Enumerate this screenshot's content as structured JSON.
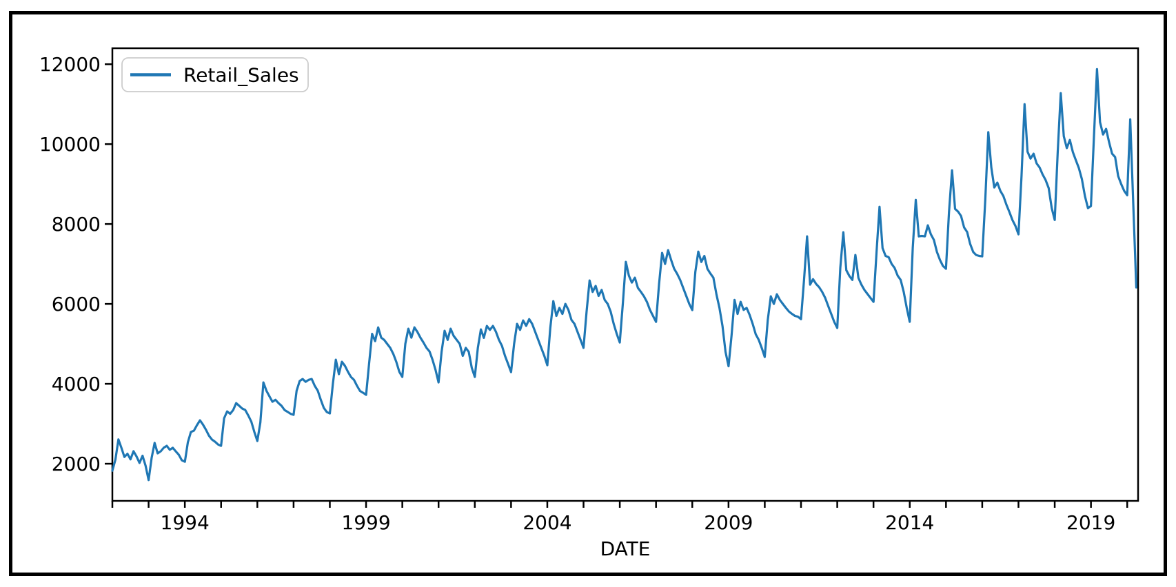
{
  "figure": {
    "background": "#ffffff",
    "border_color": "#000000"
  },
  "axes": {
    "xlabel": "DATE",
    "ylabel": "",
    "y_tick_labels": [
      "2000",
      "4000",
      "6000",
      "8000",
      "10000",
      "12000"
    ],
    "x_tick_labels": [
      "1994",
      "1999",
      "2004",
      "2009",
      "2014",
      "2019"
    ]
  },
  "legend": {
    "label": "Retail_Sales",
    "position": "upper-left"
  },
  "colors": {
    "line": "#1f77b4",
    "text": "#000000",
    "spine": "#000000",
    "legend_border": "#cccccc",
    "legend_fill": "#ffffff"
  },
  "chart_data": {
    "type": "line",
    "title": "",
    "xlabel": "DATE",
    "ylabel": "",
    "legend_entries": [
      "Retail_Sales"
    ],
    "legend_position": "upper-left",
    "grid": false,
    "xlim": [
      1992.0,
      2020.3
    ],
    "ylim": [
      1070,
      12400
    ],
    "y_ticks": [
      2000,
      4000,
      6000,
      8000,
      10000,
      12000
    ],
    "x_label_ticks": [
      1994,
      1999,
      2004,
      2009,
      2014,
      2019
    ],
    "x_all_ticks": [
      1992,
      1993,
      1994,
      1995,
      1996,
      1997,
      1998,
      1999,
      2000,
      2001,
      2002,
      2003,
      2004,
      2005,
      2006,
      2007,
      2008,
      2009,
      2010,
      2011,
      2012,
      2013,
      2014,
      2015,
      2016,
      2017,
      2018,
      2019,
      2020
    ],
    "series": [
      {
        "name": "Retail_Sales",
        "color": "#1f77b4",
        "frequency": "monthly",
        "start_year": 1992,
        "start_month": 1,
        "end_year": 2020,
        "end_month": 4,
        "values": [
          1826,
          2100,
          2609,
          2400,
          2170,
          2250,
          2110,
          2313,
          2180,
          2020,
          2200,
          1950,
          1590,
          2150,
          2522,
          2260,
          2310,
          2400,
          2448,
          2350,
          2400,
          2310,
          2224,
          2086,
          2050,
          2534,
          2793,
          2827,
          2966,
          3086,
          2980,
          2850,
          2700,
          2603,
          2550,
          2480,
          2448,
          3138,
          3310,
          3250,
          3345,
          3517,
          3450,
          3380,
          3345,
          3207,
          3052,
          2800,
          2569,
          3034,
          4034,
          3828,
          3690,
          3552,
          3600,
          3517,
          3450,
          3345,
          3300,
          3250,
          3224,
          3828,
          4069,
          4121,
          4050,
          4100,
          4121,
          3950,
          3828,
          3603,
          3400,
          3293,
          3259,
          4000,
          4603,
          4241,
          4551,
          4450,
          4300,
          4172,
          4100,
          3950,
          3820,
          3776,
          3724,
          4500,
          5250,
          5069,
          5413,
          5155,
          5100,
          5000,
          4900,
          4750,
          4550,
          4300,
          4172,
          5000,
          5379,
          5155,
          5413,
          5300,
          5155,
          5034,
          4900,
          4810,
          4600,
          4350,
          4034,
          4800,
          5327,
          5100,
          5379,
          5200,
          5100,
          5000,
          4700,
          4900,
          4800,
          4400,
          4172,
          4900,
          5362,
          5150,
          5448,
          5350,
          5448,
          5300,
          5100,
          4950,
          4700,
          4500,
          4293,
          5000,
          5500,
          5350,
          5586,
          5450,
          5620,
          5500,
          5300,
          5100,
          4900,
          4700,
          4465,
          5400,
          6069,
          5700,
          5900,
          5750,
          6000,
          5850,
          5600,
          5500,
          5300,
          5100,
          4900,
          5800,
          6586,
          6300,
          6450,
          6200,
          6350,
          6100,
          6000,
          5800,
          5500,
          5250,
          5035,
          6000,
          7052,
          6707,
          6535,
          6655,
          6400,
          6300,
          6190,
          6050,
          5850,
          5700,
          5550,
          6500,
          7276,
          7000,
          7345,
          7100,
          6880,
          6750,
          6600,
          6400,
          6200,
          6000,
          5845,
          6800,
          7310,
          7050,
          7200,
          6880,
          6759,
          6655,
          6242,
          5900,
          5448,
          4800,
          4440,
          5200,
          6100,
          5750,
          6052,
          5850,
          5900,
          5724,
          5500,
          5241,
          5100,
          4900,
          4672,
          5600,
          6190,
          6000,
          6242,
          6100,
          6000,
          5900,
          5810,
          5750,
          5700,
          5680,
          5620,
          6600,
          7690,
          6483,
          6620,
          6500,
          6420,
          6300,
          6150,
          5950,
          5750,
          5550,
          5397,
          6900,
          7793,
          6845,
          6700,
          6600,
          7224,
          6650,
          6483,
          6350,
          6250,
          6150,
          6052,
          7300,
          8431,
          7397,
          7200,
          7172,
          7000,
          6900,
          6707,
          6600,
          6300,
          5900,
          5552,
          7400,
          8603,
          7690,
          7700,
          7690,
          7966,
          7742,
          7600,
          7300,
          7100,
          6950,
          6879,
          8300,
          9345,
          8379,
          8310,
          8200,
          7914,
          7800,
          7500,
          7300,
          7224,
          7200,
          7190,
          8600,
          10300,
          9414,
          8914,
          9035,
          8828,
          8700,
          8483,
          8300,
          8100,
          7950,
          7742,
          9200,
          11000,
          9810,
          9638,
          9759,
          9517,
          9414,
          9241,
          9100,
          8900,
          8400,
          8100,
          9800,
          11275,
          10200,
          9900,
          10103,
          9800,
          9600,
          9400,
          9121,
          8700,
          8397,
          8450,
          10200,
          11878,
          10550,
          10240,
          10380,
          10050,
          9760,
          9675,
          9200,
          9000,
          8830,
          8720,
          10620,
          8500,
          6413
        ]
      }
    ]
  }
}
